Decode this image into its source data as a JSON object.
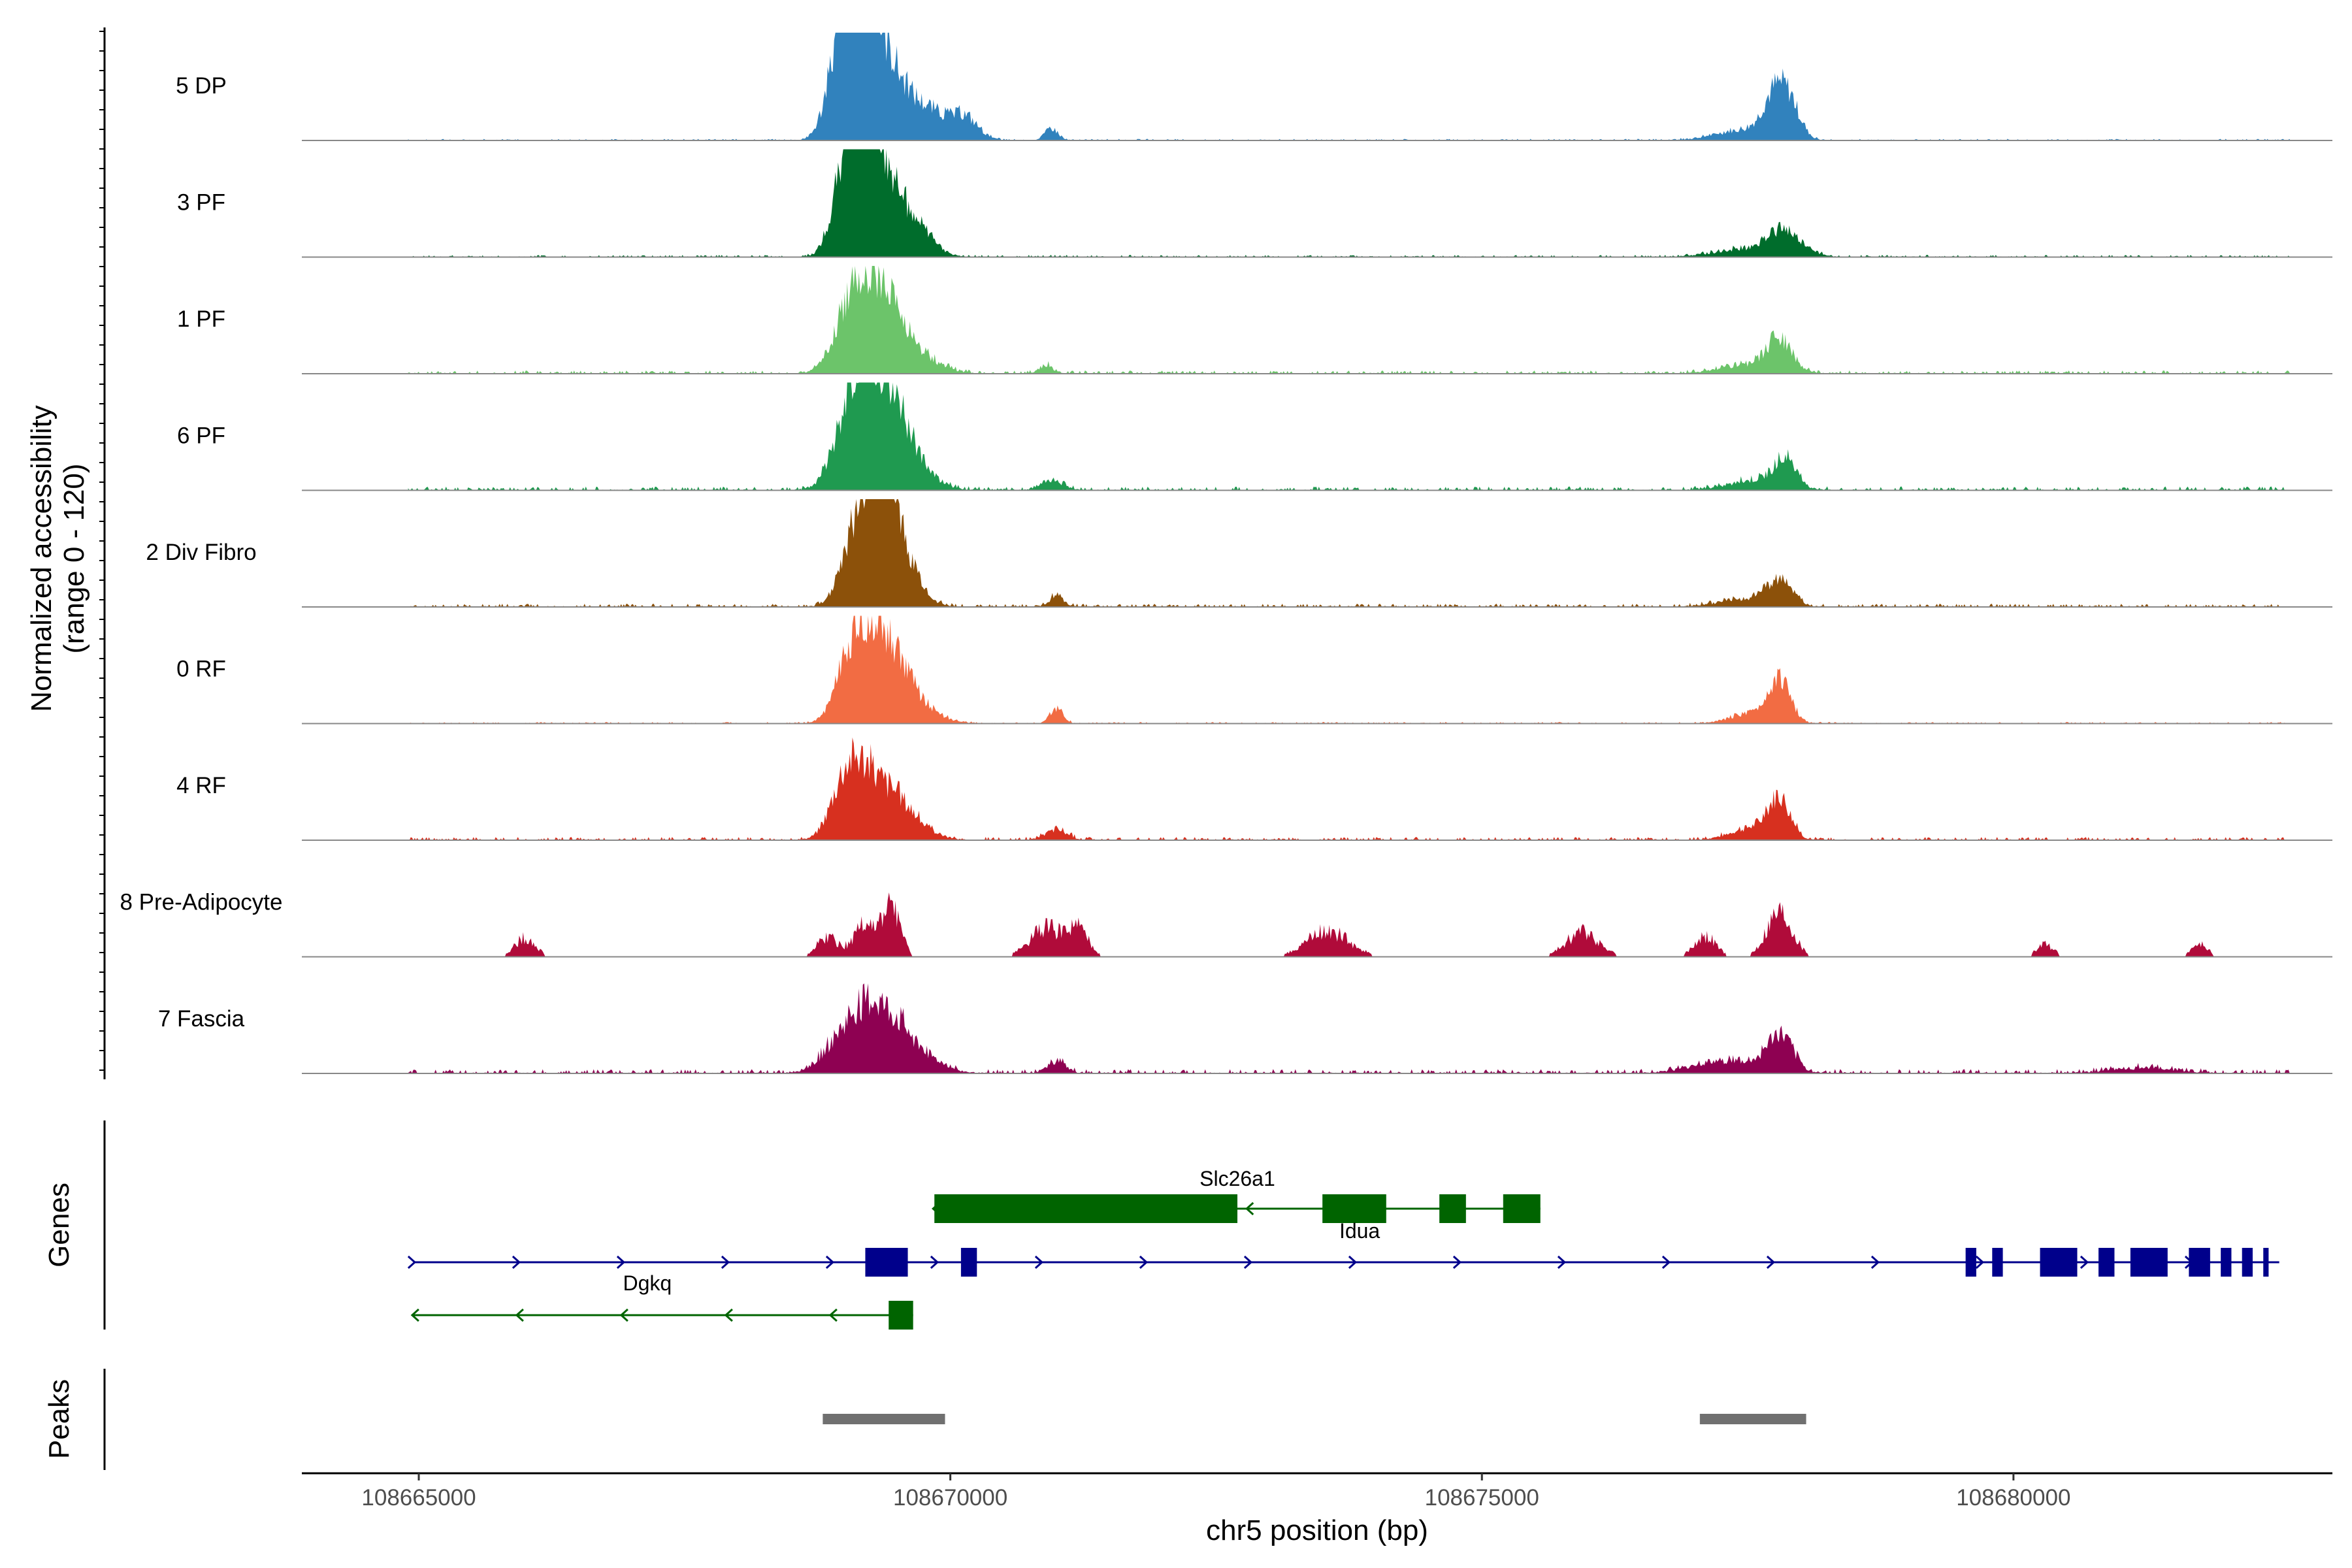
{
  "chart_data": {
    "type": "area",
    "coverage_y_title_line1": "Normalized accessibility",
    "coverage_y_title_line2": "(range 0 - 120)",
    "xlabel": "chr5 position (bp)",
    "xlim": [
      108663900,
      108683000
    ],
    "x_ticks": [
      108665000,
      108670000,
      108675000,
      108680000
    ],
    "x_tick_labels": [
      "108665000",
      "108670000",
      "108675000",
      "108680000"
    ],
    "ylim": [
      0,
      120
    ],
    "tracks": [
      {
        "name": "5 DP",
        "color": "#3182bd"
      },
      {
        "name": "3 PF",
        "color": "#006d2c"
      },
      {
        "name": "1 PF",
        "color": "#6cc46a"
      },
      {
        "name": "6 PF",
        "color": "#1f9a50"
      },
      {
        "name": "2 Div Fibro",
        "color": "#8c510a"
      },
      {
        "name": "0 RF",
        "color": "#f26c43"
      },
      {
        "name": "4 RF",
        "color": "#d7301f"
      },
      {
        "name": "8 Pre-Adipocyte",
        "color": "#b00b3a"
      },
      {
        "name": "7 Fascia",
        "color": "#8e0152"
      }
    ],
    "genes_panel_title": "Genes",
    "peaks_panel_title": "Peaks",
    "genes": [
      {
        "name": "Slc26a1",
        "strand": "-",
        "start": 108669850,
        "end": 108675550,
        "color": "#006400",
        "exons": [
          [
            108669850,
            108672700
          ],
          [
            108673500,
            108674100
          ],
          [
            108674600,
            108674850
          ],
          [
            108675200,
            108675550
          ]
        ]
      },
      {
        "name": "Idua",
        "strand": "+",
        "start": 108664950,
        "end": 108682500,
        "color": "#00008b",
        "exons": [
          [
            108669200,
            108669600
          ],
          [
            108670100,
            108670250
          ],
          [
            108679550,
            108679650
          ],
          [
            108679800,
            108679900
          ],
          [
            108680250,
            108680600
          ],
          [
            108680800,
            108680950
          ],
          [
            108681100,
            108681450
          ],
          [
            108681650,
            108681850
          ],
          [
            108681950,
            108682050
          ],
          [
            108682150,
            108682250
          ],
          [
            108682350,
            108682400
          ]
        ]
      },
      {
        "name": "Dgkq",
        "strand": "-",
        "start": 108664950,
        "end": 108669650,
        "color": "#006400",
        "exons": [
          [
            108669420,
            108669650
          ]
        ]
      }
    ],
    "peaks": [
      [
        108668800,
        108669950
      ],
      [
        108677050,
        108678050
      ]
    ]
  }
}
